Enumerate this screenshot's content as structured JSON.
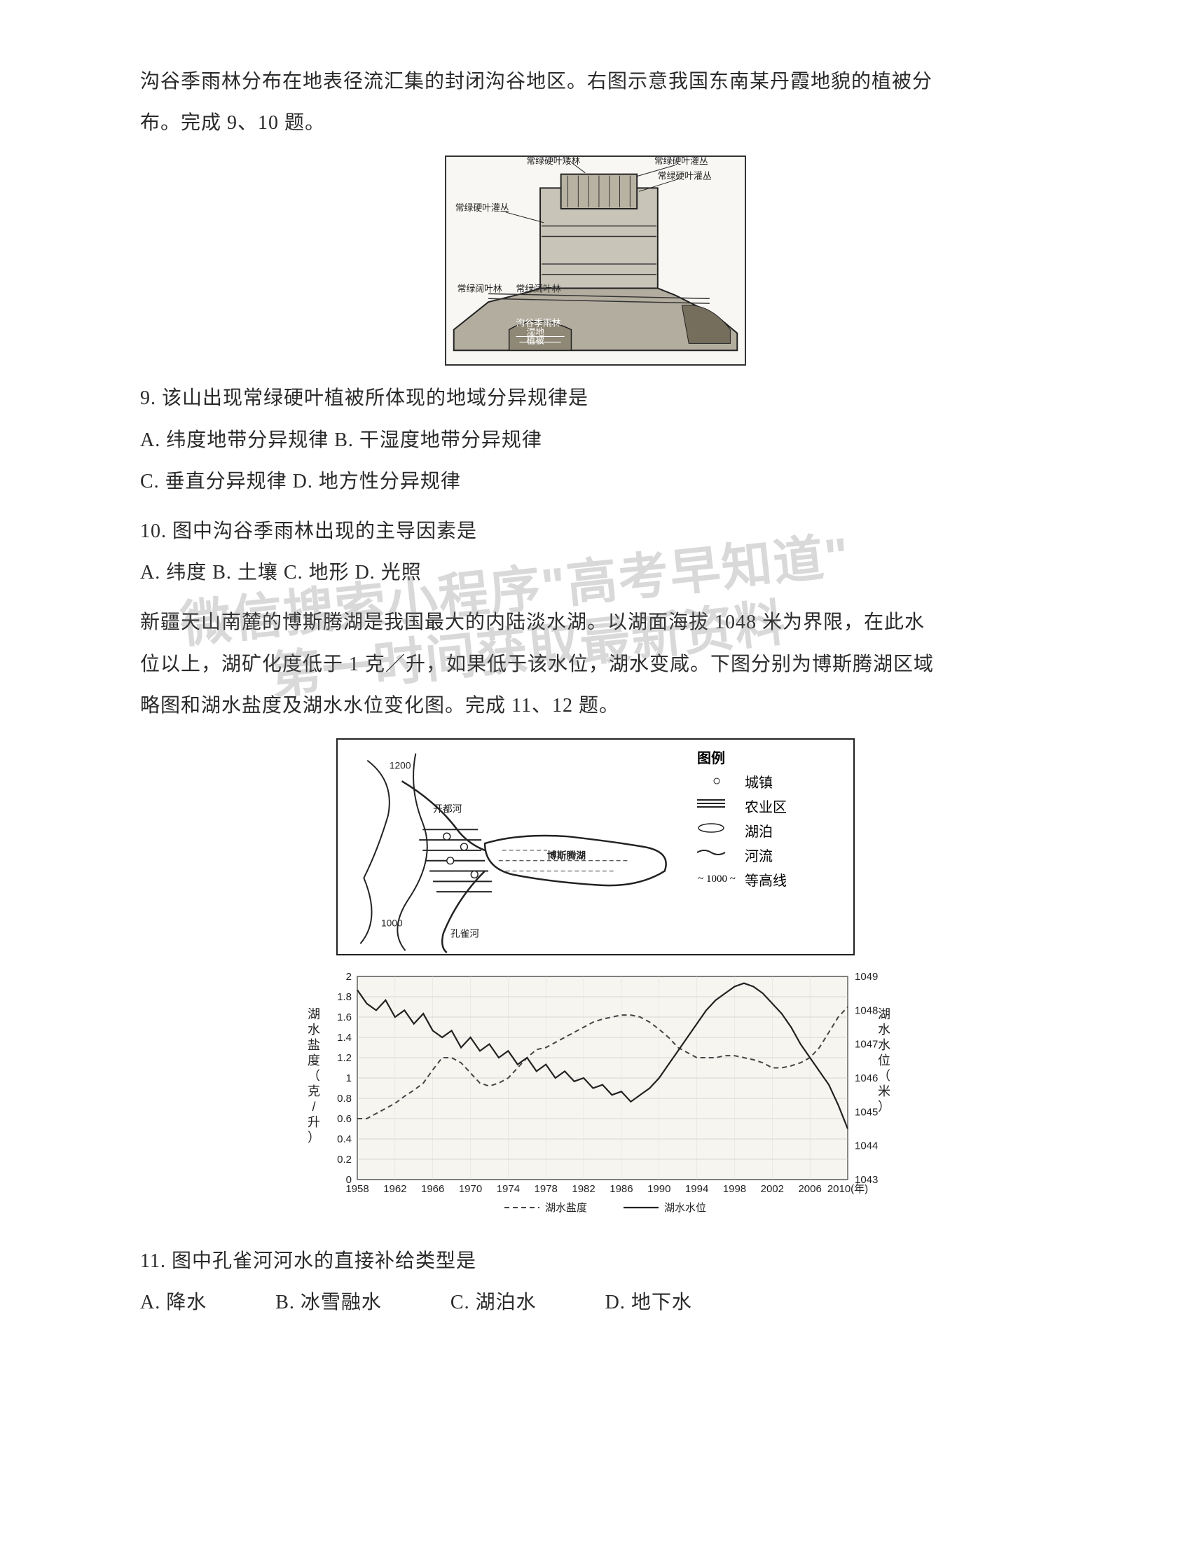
{
  "intro1": {
    "line1": "沟谷季雨林分布在地表径流汇集的封闭沟谷地区。右图示意我国东南某丹霞地貌的植被分",
    "line2": "布。完成 9、10 题。"
  },
  "figure1": {
    "labels": {
      "top_right1": "常绿硬叶灌丛",
      "top_right2": "常绿硬叶灌丛",
      "top_left": "常绿硬叶矮林",
      "mid_left": "常绿硬叶灌丛",
      "bottom_left1": "常绿阔叶林",
      "bottom_left2": "常绿阔叶林",
      "valley1": "沟谷季雨林",
      "valley2": "湿地",
      "valley3": "植被"
    }
  },
  "q9": {
    "stem": "9. 该山出现常绿硬叶植被所体现的地域分异规律是",
    "optA": "A. 纬度地带分异规律 B. 干湿度地带分异规律",
    "optC": "C. 垂直分异规律 D. 地方性分异规律"
  },
  "q10": {
    "stem": "10. 图中沟谷季雨林出现的主导因素是",
    "opts": "A. 纬度 B. 土壤 C. 地形 D. 光照"
  },
  "intro2": {
    "line1": "新疆天山南麓的博斯腾湖是我国最大的内陆淡水湖。以湖面海拔 1048 米为界限，在此水",
    "line2": "位以上，湖矿化度低于 1 克／升，如果低于该水位，湖水变咸。下图分别为博斯腾湖区域",
    "line3": "略图和湖水盐度及湖水水位变化图。完成 11、12 题。"
  },
  "watermark": {
    "line1": "微信搜索小程序\"高考早知道\"",
    "line2": "第一时间获取最新资料"
  },
  "map": {
    "legend_title": "图例",
    "items": [
      {
        "symbol": "circle",
        "label": "城镇"
      },
      {
        "symbol": "hatch",
        "label": "农业区"
      },
      {
        "symbol": "lake",
        "label": "湖泊"
      },
      {
        "symbol": "river",
        "label": "河流"
      },
      {
        "symbol": "contour",
        "label": "等高线"
      }
    ],
    "contour_label": "~ 1000 ~",
    "lake_name": "博斯腾湖",
    "river1": "开都河",
    "river2": "孔雀河",
    "elev1": "1200",
    "elev2": "1000"
  },
  "chart": {
    "y1_label": "湖水盐度（克/升）",
    "y2_label": "湖水水位（米）",
    "x_ticks": [
      "1958",
      "1962",
      "1966",
      "1970",
      "1974",
      "1978",
      "1982",
      "1986",
      "1990",
      "1994",
      "1998",
      "2002",
      "2006",
      "2010(年)"
    ],
    "y1_ticks": [
      "0",
      "0.2",
      "0.4",
      "0.6",
      "0.8",
      "1",
      "1.2",
      "1.4",
      "1.6",
      "1.8",
      "2"
    ],
    "y2_ticks": [
      "1043",
      "1044",
      "1045",
      "1046",
      "1047",
      "1048",
      "1049"
    ],
    "legend1": "湖水盐度",
    "legend2": "湖水水位",
    "salinity": [
      0.6,
      0.6,
      0.65,
      0.7,
      0.75,
      0.82,
      0.88,
      0.95,
      1.08,
      1.2,
      1.2,
      1.15,
      1.05,
      0.95,
      0.92,
      0.95,
      1.0,
      1.1,
      1.2,
      1.28,
      1.3,
      1.35,
      1.4,
      1.45,
      1.5,
      1.55,
      1.58,
      1.6,
      1.62,
      1.62,
      1.6,
      1.55,
      1.48,
      1.4,
      1.3,
      1.25,
      1.2,
      1.2,
      1.2,
      1.22,
      1.22,
      1.2,
      1.18,
      1.15,
      1.1,
      1.1,
      1.12,
      1.15,
      1.2,
      1.3,
      1.45,
      1.6,
      1.7
    ],
    "waterlevel": [
      1048.6,
      1048.2,
      1048.0,
      1048.3,
      1047.8,
      1048.0,
      1047.6,
      1047.9,
      1047.4,
      1047.2,
      1047.4,
      1046.9,
      1047.2,
      1046.8,
      1047.0,
      1046.6,
      1046.8,
      1046.4,
      1046.6,
      1046.2,
      1046.4,
      1046.0,
      1046.2,
      1045.9,
      1046.0,
      1045.7,
      1045.8,
      1045.5,
      1045.6,
      1045.3,
      1045.5,
      1045.7,
      1046.0,
      1046.4,
      1046.8,
      1047.2,
      1047.6,
      1048.0,
      1048.3,
      1048.5,
      1048.7,
      1048.8,
      1048.7,
      1048.5,
      1048.2,
      1047.9,
      1047.5,
      1047.0,
      1046.6,
      1046.2,
      1045.8,
      1045.2,
      1044.5
    ],
    "colors": {
      "bg": "#f7f5f0",
      "line": "#222",
      "dash": "#444"
    }
  },
  "q11": {
    "stem": "11. 图中孔雀河河水的直接补给类型是",
    "optA": "A. 降水",
    "optB": "B. 冰雪融水",
    "optC": "C. 湖泊水",
    "optD": "D. 地下水"
  }
}
